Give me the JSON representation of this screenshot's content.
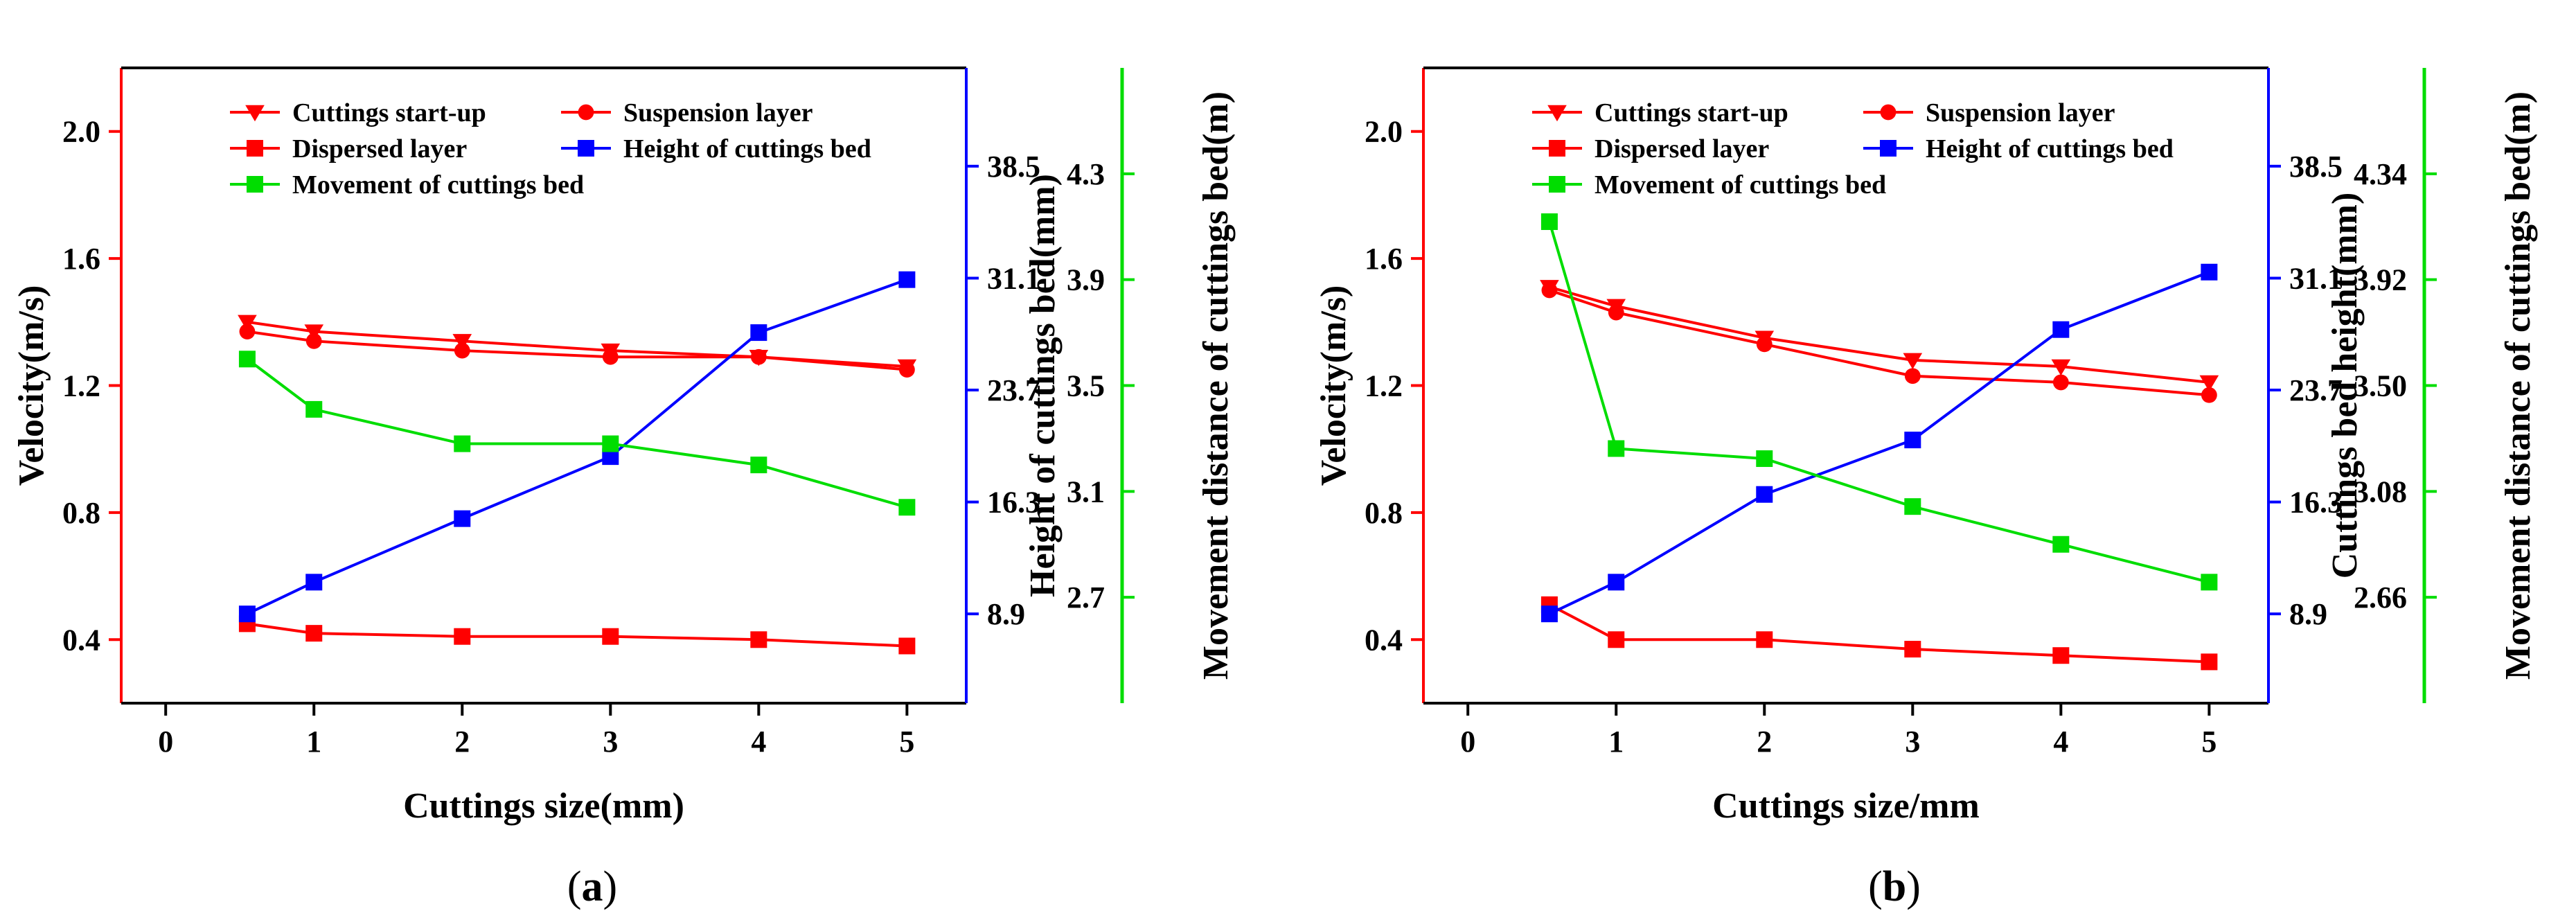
{
  "chart_data": [
    {
      "type": "line",
      "panel": "a",
      "caption_open": "(",
      "caption_letter": "a",
      "caption_close": ")",
      "xlabel": "Cuttings size(mm)",
      "ylabel_left": "Velocity(m/s)",
      "ylabel_right1": "Height of cuttings bed(mm)",
      "ylabel_right2": "Movement distance of cuttings bed(m)",
      "xlim": [
        -0.3,
        5.4
      ],
      "ylim_left": [
        0.2,
        2.2
      ],
      "ylim_right1": [
        3.0,
        45.0
      ],
      "ylim_right2": [
        2.3,
        4.7
      ],
      "x_ticks": [
        0,
        1,
        2,
        3,
        4,
        5
      ],
      "y_ticks_left": [
        "0.4",
        "0.8",
        "1.2",
        "1.6",
        "2.0"
      ],
      "y_ticks_right1": [
        "8.9",
        "16.3",
        "23.7",
        "31.1",
        "38.5"
      ],
      "y_ticks_right2": [
        "2.7",
        "3.1",
        "3.5",
        "3.9",
        "4.3"
      ],
      "x": [
        0.55,
        1,
        2,
        3,
        4,
        5
      ],
      "series": [
        {
          "name": "Cuttings start-up",
          "axis": "left",
          "color": "#ff0000",
          "marker": "triangle-down",
          "values": [
            1.4,
            1.37,
            1.34,
            1.31,
            1.29,
            1.26
          ]
        },
        {
          "name": "Suspension layer",
          "axis": "left",
          "color": "#ff0000",
          "marker": "circle",
          "values": [
            1.37,
            1.34,
            1.31,
            1.29,
            1.29,
            1.25
          ]
        },
        {
          "name": "Dispersed layer",
          "axis": "left",
          "color": "#ff0000",
          "marker": "square",
          "values": [
            0.45,
            0.42,
            0.41,
            0.41,
            0.4,
            0.38
          ]
        },
        {
          "name": "Height of cuttings bed",
          "axis": "right1",
          "color": "#0000ff",
          "marker": "square",
          "values": [
            8.9,
            11.0,
            15.2,
            19.3,
            27.5,
            31.0
          ]
        },
        {
          "name": "Movement of cuttings bed",
          "axis": "right2",
          "color": "#00dd00",
          "marker": "square",
          "values": [
            3.6,
            3.41,
            3.28,
            3.28,
            3.2,
            3.04
          ]
        }
      ],
      "legend_rows": [
        [
          "Cuttings start-up",
          "Suspension layer"
        ],
        [
          "Dispersed layer",
          "Height of cuttings bed"
        ],
        [
          "Movement of cuttings bed"
        ]
      ]
    },
    {
      "type": "line",
      "panel": "b",
      "caption_open": "(",
      "caption_letter": "b",
      "caption_close": ")",
      "xlabel": "Cuttings size/mm",
      "ylabel_left": "Velocity(m/s)",
      "ylabel_right1": "Cuttings bed height(mm)",
      "ylabel_right2": "Movement distance of cuttings bed(m)",
      "xlim": [
        -0.3,
        5.4
      ],
      "ylim_left": [
        0.2,
        2.2
      ],
      "ylim_right1": [
        3.0,
        45.0
      ],
      "ylim_right2": [
        2.24,
        4.76
      ],
      "x_ticks": [
        0,
        1,
        2,
        3,
        4,
        5
      ],
      "y_ticks_left": [
        "0.4",
        "0.8",
        "1.2",
        "1.6",
        "2.0"
      ],
      "y_ticks_right1": [
        "8.9",
        "16.3",
        "23.7",
        "31.1",
        "38.5"
      ],
      "y_ticks_right2": [
        "2.66",
        "3.08",
        "3.50",
        "3.92",
        "4.34"
      ],
      "x": [
        0.55,
        1,
        2,
        3,
        4,
        5
      ],
      "series": [
        {
          "name": "Cuttings start-up",
          "axis": "left",
          "color": "#ff0000",
          "marker": "triangle-down",
          "values": [
            1.51,
            1.45,
            1.35,
            1.28,
            1.26,
            1.21
          ]
        },
        {
          "name": "Suspension layer",
          "axis": "left",
          "color": "#ff0000",
          "marker": "circle",
          "values": [
            1.5,
            1.43,
            1.33,
            1.23,
            1.21,
            1.17
          ]
        },
        {
          "name": "Dispersed layer",
          "axis": "left",
          "color": "#ff0000",
          "marker": "square",
          "values": [
            0.51,
            0.4,
            0.4,
            0.37,
            0.35,
            0.33
          ]
        },
        {
          "name": "Height of cuttings bed",
          "axis": "right1",
          "color": "#0000ff",
          "marker": "square",
          "values": [
            8.9,
            11.0,
            16.8,
            20.4,
            27.7,
            31.5
          ]
        },
        {
          "name": "Movement of cuttings bed",
          "axis": "right2",
          "color": "#00dd00",
          "marker": "square",
          "values": [
            4.15,
            3.25,
            3.21,
            3.02,
            2.87,
            2.72
          ]
        }
      ],
      "legend_rows": [
        [
          "Cuttings start-up",
          "Suspension layer"
        ],
        [
          "Dispersed layer",
          "Height of cuttings bed"
        ],
        [
          "Movement of cuttings bed"
        ]
      ]
    }
  ]
}
